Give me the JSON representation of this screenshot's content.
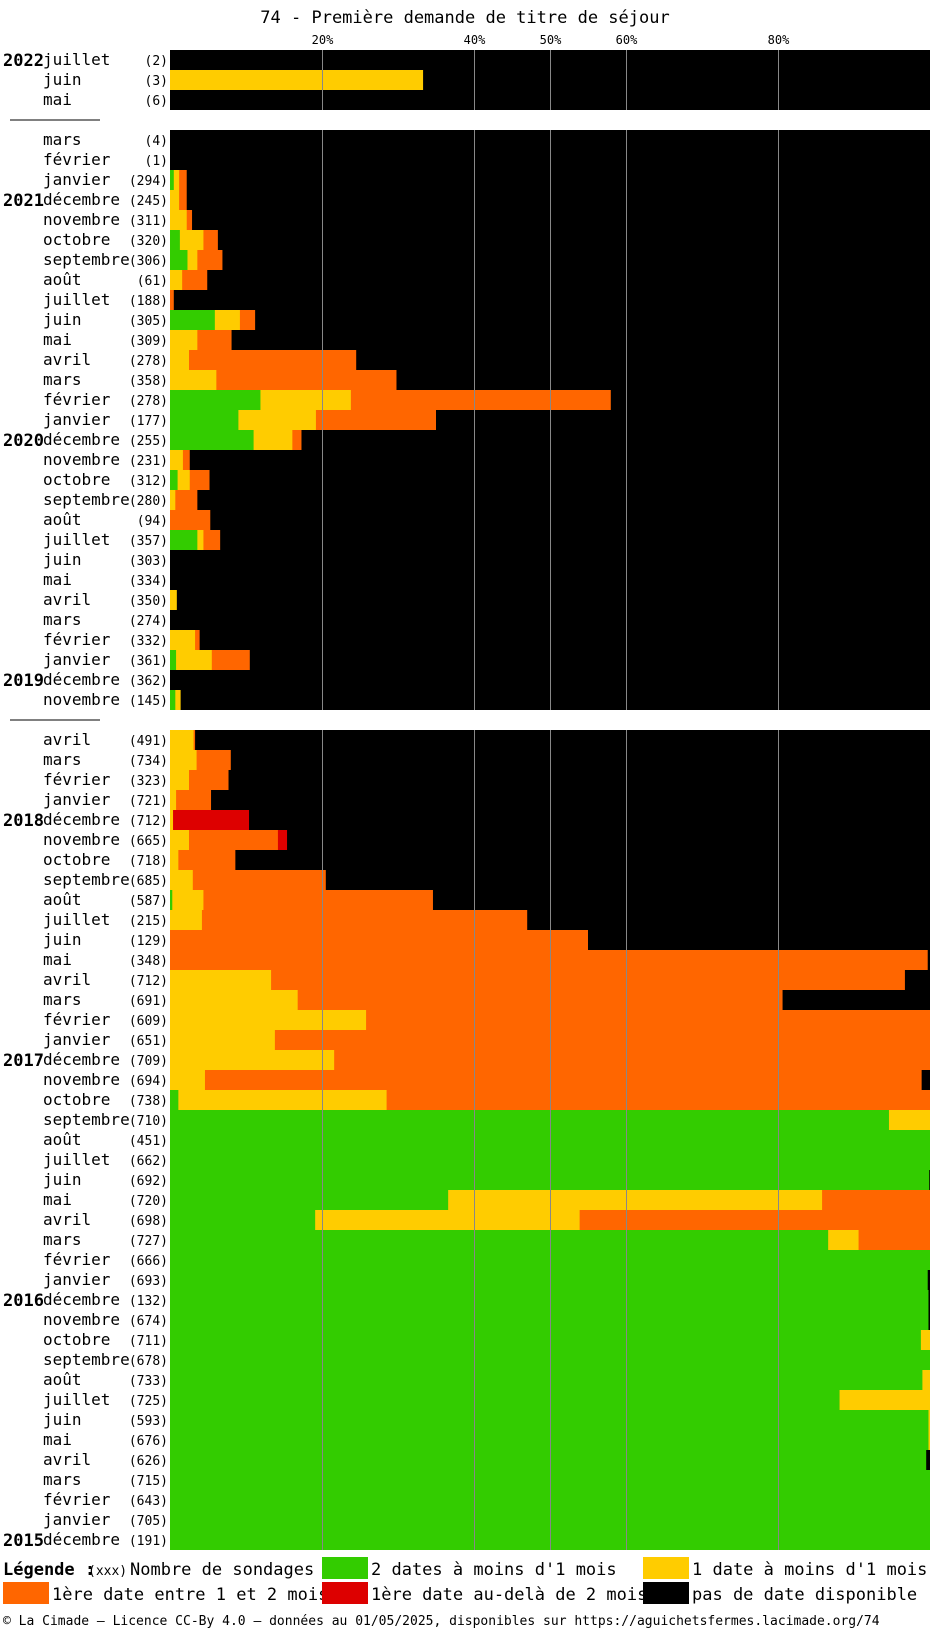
{
  "chart_data": {
    "type": "bar",
    "stacked": true,
    "orientation": "horizontal",
    "title": "74 - Première demande de titre de séjour",
    "x_ticks": [
      {
        "value": 20,
        "label": "20%"
      },
      {
        "value": 40,
        "label": "40%"
      },
      {
        "value": 50,
        "label": "50%"
      },
      {
        "value": 60,
        "label": "60%"
      },
      {
        "value": 80,
        "label": "80%"
      }
    ],
    "xlim": [
      0,
      100
    ],
    "series_names": [
      "2 dates à moins d'1 mois",
      "1 date à moins d'1 mois",
      "1ère date entre 1 et 2 mois",
      "1ère date au-delà de 2 mois",
      "pas de date disponible"
    ],
    "series_colors": [
      "#33cc00",
      "#ffcc00",
      "#ff6600",
      "#dd0000",
      "#000000"
    ],
    "groups": [
      {
        "rows": [
          {
            "year": "2022",
            "month": "juillet",
            "count": "(2)",
            "values": [
              0,
              0,
              0,
              0,
              100
            ]
          },
          {
            "year": "",
            "month": "juin",
            "count": "(3)",
            "values": [
              0,
              33.3,
              0,
              0,
              66.7
            ]
          },
          {
            "year": "",
            "month": "mai",
            "count": "(6)",
            "values": [
              0,
              0,
              0,
              0,
              100
            ]
          }
        ]
      },
      {
        "rows": [
          {
            "year": "",
            "month": "mars",
            "count": "(4)",
            "values": [
              0,
              0,
              0,
              0,
              100
            ]
          },
          {
            "year": "",
            "month": "février",
            "count": "(1)",
            "values": [
              0,
              0,
              0,
              0,
              100
            ]
          },
          {
            "year": "",
            "month": "janvier",
            "count": "(294)",
            "values": [
              0.5,
              0.7,
              1.0,
              0,
              97.8
            ]
          },
          {
            "year": "2021",
            "month": "décembre",
            "count": "(245)",
            "values": [
              0,
              1.2,
              1.0,
              0,
              97.8
            ]
          },
          {
            "year": "",
            "month": "novembre",
            "count": "(311)",
            "values": [
              0,
              2.2,
              0.7,
              0,
              97.1
            ]
          },
          {
            "year": "",
            "month": "octobre",
            "count": "(320)",
            "values": [
              1.3,
              3.1,
              1.9,
              0,
              93.7
            ]
          },
          {
            "year": "",
            "month": "septembre",
            "count": "(306)",
            "values": [
              2.3,
              1.3,
              3.3,
              0,
              93.1
            ]
          },
          {
            "year": "",
            "month": "août",
            "count": "(61)",
            "values": [
              0,
              1.6,
              3.3,
              0,
              95.1
            ]
          },
          {
            "year": "",
            "month": "juillet",
            "count": "(188)",
            "values": [
              0,
              0,
              0.5,
              0,
              99.5
            ]
          },
          {
            "year": "",
            "month": "juin",
            "count": "(305)",
            "values": [
              5.9,
              3.3,
              2.0,
              0,
              88.8
            ]
          },
          {
            "year": "",
            "month": "mai",
            "count": "(309)",
            "values": [
              0,
              3.6,
              4.5,
              0,
              91.9
            ]
          },
          {
            "year": "",
            "month": "avril",
            "count": "(278)",
            "values": [
              0,
              2.5,
              22.0,
              0,
              75.5
            ]
          },
          {
            "year": "",
            "month": "mars",
            "count": "(358)",
            "values": [
              0,
              6.1,
              23.7,
              0,
              70.2
            ]
          },
          {
            "year": "",
            "month": "février",
            "count": "(278)",
            "values": [
              11.9,
              11.9,
              34.2,
              0,
              42.0
            ]
          },
          {
            "year": "",
            "month": "janvier",
            "count": "(177)",
            "values": [
              9.0,
              10.2,
              15.8,
              0,
              65.0
            ]
          },
          {
            "year": "2020",
            "month": "décembre",
            "count": "(255)",
            "values": [
              11.0,
              5.1,
              1.2,
              0,
              82.7
            ]
          },
          {
            "year": "",
            "month": "novembre",
            "count": "(231)",
            "values": [
              0,
              1.7,
              0.9,
              0,
              97.4
            ]
          },
          {
            "year": "",
            "month": "octobre",
            "count": "(312)",
            "values": [
              1.0,
              1.6,
              2.6,
              0,
              94.8
            ]
          },
          {
            "year": "",
            "month": "septembre",
            "count": "(280)",
            "values": [
              0,
              0.7,
              2.9,
              0,
              96.4
            ]
          },
          {
            "year": "",
            "month": "août",
            "count": "(94)",
            "values": [
              0,
              0,
              5.3,
              0,
              94.7
            ]
          },
          {
            "year": "",
            "month": "juillet",
            "count": "(357)",
            "values": [
              3.6,
              0.8,
              2.2,
              0,
              93.4
            ]
          },
          {
            "year": "",
            "month": "juin",
            "count": "(303)",
            "values": [
              0,
              0,
              0,
              0,
              100
            ]
          },
          {
            "year": "",
            "month": "mai",
            "count": "(334)",
            "values": [
              0,
              0,
              0,
              0,
              100
            ]
          },
          {
            "year": "",
            "month": "avril",
            "count": "(350)",
            "values": [
              0,
              0.9,
              0,
              0,
              99.1
            ]
          },
          {
            "year": "",
            "month": "mars",
            "count": "(274)",
            "values": [
              0,
              0,
              0,
              0,
              100
            ]
          },
          {
            "year": "",
            "month": "février",
            "count": "(332)",
            "values": [
              0,
              3.3,
              0.6,
              0,
              96.1
            ]
          },
          {
            "year": "",
            "month": "janvier",
            "count": "(361)",
            "values": [
              0.8,
              4.7,
              5.0,
              0,
              89.5
            ]
          },
          {
            "year": "2019",
            "month": "décembre",
            "count": "(362)",
            "values": [
              0,
              0,
              0,
              0,
              100
            ]
          },
          {
            "year": "",
            "month": "novembre",
            "count": "(145)",
            "values": [
              0.7,
              0.7,
              0,
              0,
              98.6
            ]
          }
        ]
      },
      {
        "rows": [
          {
            "year": "",
            "month": "avril",
            "count": "(491)",
            "values": [
              0,
              3.1,
              0.2,
              0,
              96.7
            ]
          },
          {
            "year": "",
            "month": "mars",
            "count": "(734)",
            "values": [
              0,
              3.5,
              4.5,
              0,
              92.0
            ]
          },
          {
            "year": "",
            "month": "février",
            "count": "(323)",
            "values": [
              0,
              2.5,
              5.2,
              0,
              92.3
            ]
          },
          {
            "year": "",
            "month": "janvier",
            "count": "(721)",
            "values": [
              0,
              0.8,
              4.6,
              0,
              94.6
            ]
          },
          {
            "year": "2018",
            "month": "décembre",
            "count": "(712)",
            "values": [
              0,
              0.4,
              0,
              10.0,
              89.6
            ]
          },
          {
            "year": "",
            "month": "novembre",
            "count": "(665)",
            "values": [
              0,
              2.5,
              11.7,
              1.2,
              84.6
            ]
          },
          {
            "year": "",
            "month": "octobre",
            "count": "(718)",
            "values": [
              0,
              1.1,
              7.5,
              0,
              91.4
            ]
          },
          {
            "year": "",
            "month": "septembre",
            "count": "(685)",
            "values": [
              0,
              3.0,
              17.5,
              0,
              79.5
            ]
          },
          {
            "year": "",
            "month": "août",
            "count": "(587)",
            "values": [
              0.3,
              4.1,
              30.2,
              0,
              65.4
            ]
          },
          {
            "year": "",
            "month": "juillet",
            "count": "(215)",
            "values": [
              0,
              4.2,
              42.8,
              0,
              53.0
            ]
          },
          {
            "year": "",
            "month": "juin",
            "count": "(129)",
            "values": [
              0,
              0,
              55.0,
              0,
              45.0
            ]
          },
          {
            "year": "",
            "month": "mai",
            "count": "(348)",
            "values": [
              0,
              0,
              99.7,
              0,
              0.3
            ]
          },
          {
            "year": "",
            "month": "avril",
            "count": "(712)",
            "values": [
              0,
              13.3,
              83.4,
              0,
              3.3
            ]
          },
          {
            "year": "",
            "month": "mars",
            "count": "(691)",
            "values": [
              0,
              16.8,
              63.8,
              0,
              19.4
            ]
          },
          {
            "year": "",
            "month": "février",
            "count": "(609)",
            "values": [
              0,
              25.8,
              74.2,
              0,
              0
            ]
          },
          {
            "year": "",
            "month": "janvier",
            "count": "(651)",
            "values": [
              0,
              13.8,
              86.2,
              0,
              0
            ]
          },
          {
            "year": "2017",
            "month": "décembre",
            "count": "(709)",
            "values": [
              0,
              21.6,
              78.4,
              0,
              0
            ]
          },
          {
            "year": "",
            "month": "novembre",
            "count": "(694)",
            "values": [
              0,
              4.6,
              94.3,
              0,
              1.1
            ]
          },
          {
            "year": "",
            "month": "octobre",
            "count": "(738)",
            "values": [
              1.1,
              27.4,
              71.5,
              0,
              0
            ]
          },
          {
            "year": "",
            "month": "septembre",
            "count": "(710)",
            "values": [
              94.6,
              5.4,
              0,
              0,
              0
            ]
          },
          {
            "year": "",
            "month": "août",
            "count": "(451)",
            "values": [
              100,
              0,
              0,
              0,
              0
            ]
          },
          {
            "year": "",
            "month": "juillet",
            "count": "(662)",
            "values": [
              100,
              0,
              0,
              0,
              0
            ]
          },
          {
            "year": "",
            "month": "juin",
            "count": "(692)",
            "values": [
              99.9,
              0,
              0,
              0,
              0.1
            ]
          },
          {
            "year": "",
            "month": "mai",
            "count": "(720)",
            "values": [
              36.6,
              49.2,
              14.2,
              0,
              0
            ]
          },
          {
            "year": "",
            "month": "avril",
            "count": "(698)",
            "values": [
              19.1,
              34.8,
              46.1,
              0,
              0
            ]
          },
          {
            "year": "",
            "month": "mars",
            "count": "(727)",
            "values": [
              86.6,
              4.0,
              9.4,
              0,
              0
            ]
          },
          {
            "year": "",
            "month": "février",
            "count": "(666)",
            "values": [
              100,
              0,
              0,
              0,
              0
            ]
          },
          {
            "year": "",
            "month": "janvier",
            "count": "(693)",
            "values": [
              99.7,
              0,
              0,
              0,
              0.3
            ]
          },
          {
            "year": "2016",
            "month": "décembre",
            "count": "(132)",
            "values": [
              99.8,
              0,
              0,
              0,
              0.2
            ]
          },
          {
            "year": "",
            "month": "novembre",
            "count": "(674)",
            "values": [
              99.8,
              0,
              0,
              0,
              0.2
            ]
          },
          {
            "year": "",
            "month": "octobre",
            "count": "(711)",
            "values": [
              98.8,
              1.2,
              0,
              0,
              0
            ]
          },
          {
            "year": "",
            "month": "septembre",
            "count": "(678)",
            "values": [
              100,
              0,
              0,
              0,
              0
            ]
          },
          {
            "year": "",
            "month": "août",
            "count": "(733)",
            "values": [
              99.0,
              1.0,
              0,
              0,
              0
            ]
          },
          {
            "year": "",
            "month": "juillet",
            "count": "(725)",
            "values": [
              88.1,
              11.9,
              0,
              0,
              0
            ]
          },
          {
            "year": "",
            "month": "juin",
            "count": "(593)",
            "values": [
              99.8,
              0.2,
              0,
              0,
              0
            ]
          },
          {
            "year": "",
            "month": "mai",
            "count": "(676)",
            "values": [
              99.8,
              0.2,
              0,
              0,
              0
            ]
          },
          {
            "year": "",
            "month": "avril",
            "count": "(626)",
            "values": [
              99.5,
              0,
              0,
              0,
              0.5
            ]
          },
          {
            "year": "",
            "month": "mars",
            "count": "(715)",
            "values": [
              100,
              0,
              0,
              0,
              0
            ]
          },
          {
            "year": "",
            "month": "février",
            "count": "(643)",
            "values": [
              100,
              0,
              0,
              0,
              0
            ]
          },
          {
            "year": "",
            "month": "janvier",
            "count": "(705)",
            "values": [
              100,
              0,
              0,
              0,
              0
            ]
          },
          {
            "year": "2015",
            "month": "décembre",
            "count": "(191)",
            "values": [
              100,
              0,
              0,
              0,
              0
            ]
          }
        ]
      }
    ]
  },
  "legend": {
    "title": "Légende :",
    "count_hint": "(xxx)",
    "count_label": "Nombre de sondages",
    "items": [
      {
        "label": "2 dates à moins d'1 mois",
        "color": "#33cc00"
      },
      {
        "label": "1 date à moins d'1 mois",
        "color": "#ffcc00"
      },
      {
        "label": "1ère date entre 1 et 2 mois",
        "color": "#ff6600"
      },
      {
        "label": "1ère date au-delà de 2 mois",
        "color": "#dd0000"
      },
      {
        "label": "pas de date disponible",
        "color": "#000000"
      }
    ]
  },
  "footer": "© La Cimade – Licence CC-By 4.0 – données au 01/05/2025, disponibles sur https://aguichetsfermes.lacimade.org/74"
}
